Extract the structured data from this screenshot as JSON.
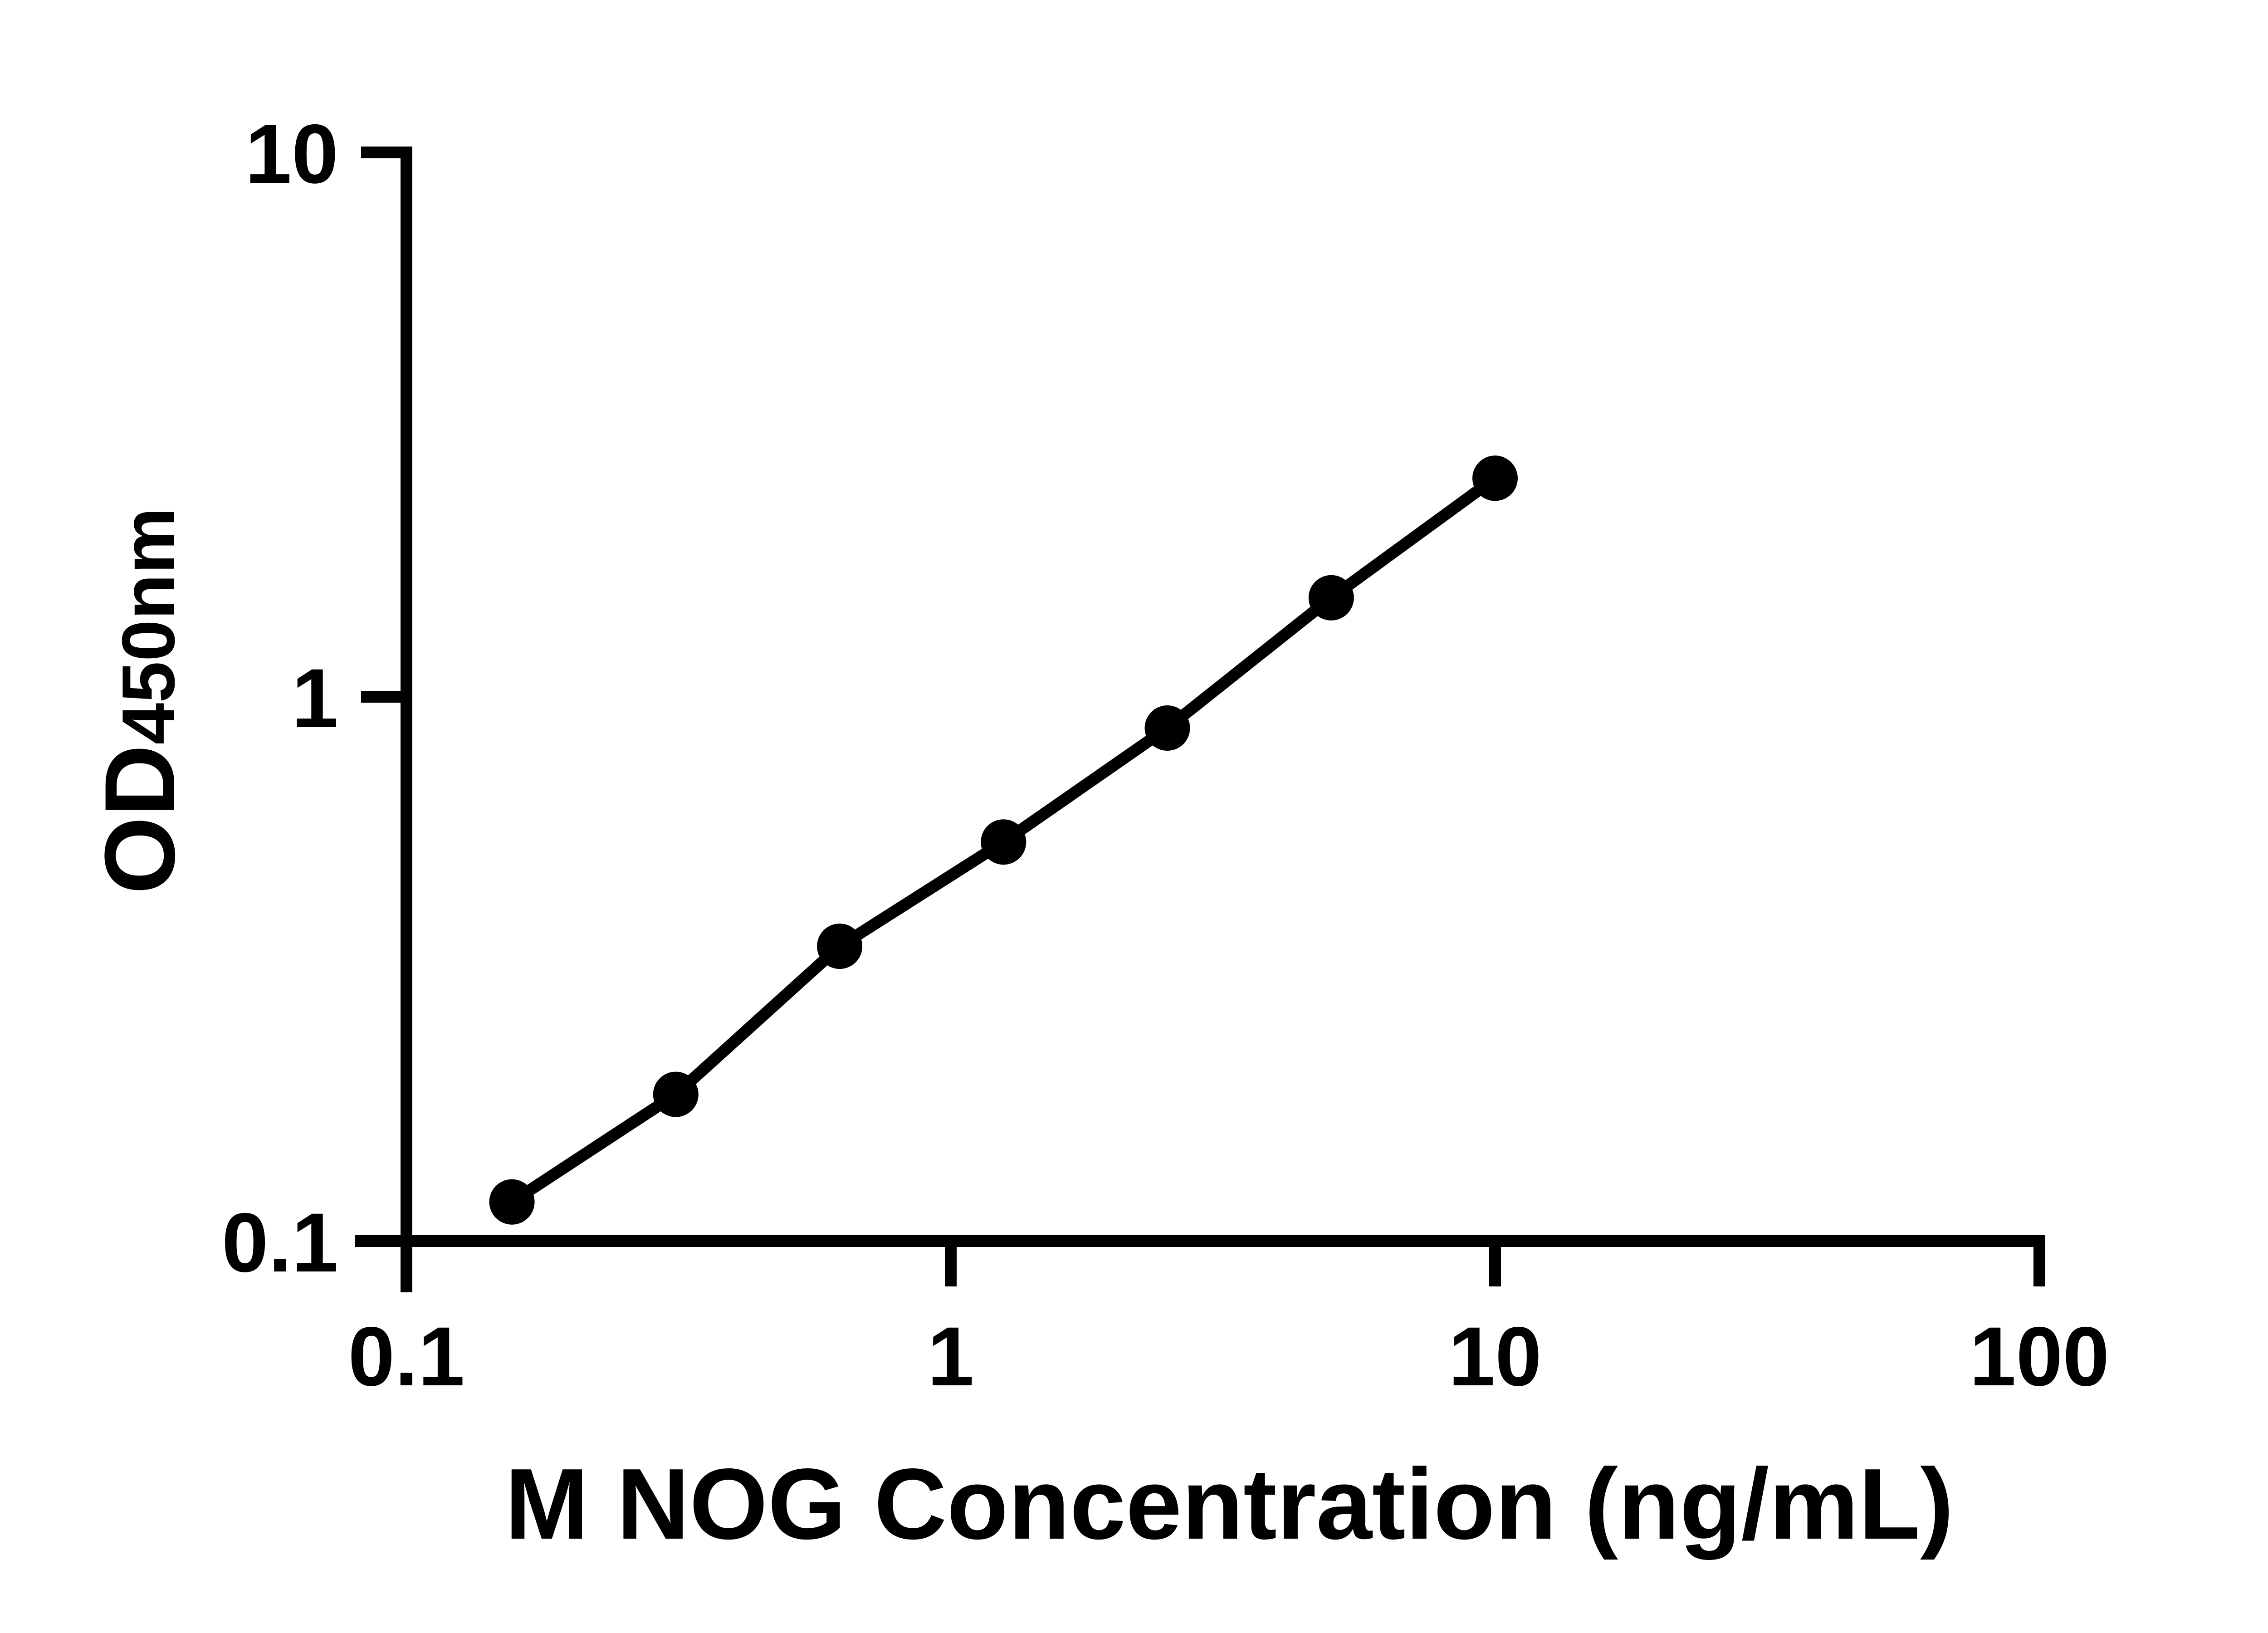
{
  "figure": {
    "background_color": "#ffffff",
    "ink_color": "#000000"
  },
  "chart_data": {
    "type": "scatter",
    "title": "",
    "x": [
      0.15625,
      0.3125,
      0.625,
      1.25,
      2.5,
      5,
      10
    ],
    "y": [
      0.118,
      0.186,
      0.348,
      0.541,
      0.876,
      1.52,
      2.52
    ],
    "marker": "filled-circle",
    "connect_points": "line",
    "xlabel": "M NOG Concentration (ng/mL)",
    "ylabel_main": "OD",
    "ylabel_sub": "450nm",
    "xscale": "log10",
    "yscale": "log10",
    "xlim": [
      0.1,
      100
    ],
    "ylim": [
      0.1,
      10
    ],
    "x_ticks": [
      {
        "value": 0.1,
        "label": "0.1"
      },
      {
        "value": 1,
        "label": "1"
      },
      {
        "value": 10,
        "label": "10"
      },
      {
        "value": 100,
        "label": "100"
      }
    ],
    "y_ticks": [
      {
        "value": 10,
        "label": "10"
      },
      {
        "value": 1,
        "label": "1"
      },
      {
        "value": 0.1,
        "label": "0.1"
      }
    ],
    "grid": false,
    "legend": "none"
  }
}
